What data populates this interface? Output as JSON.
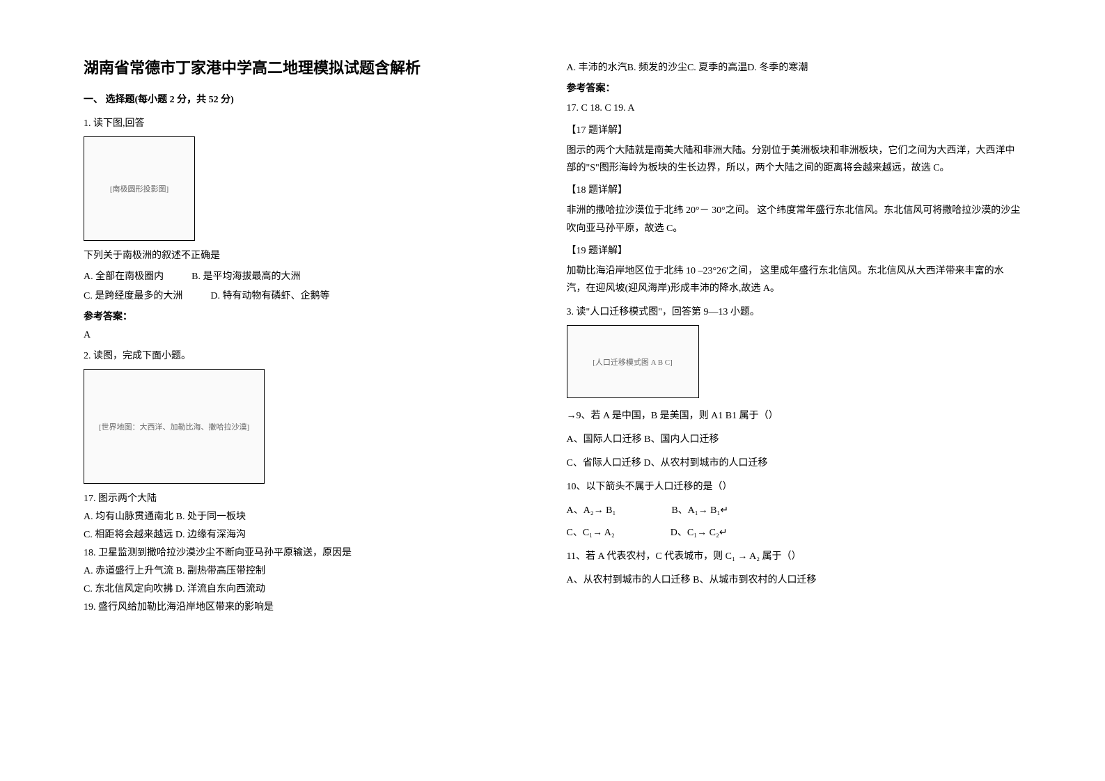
{
  "left": {
    "title": "湖南省常德市丁家港中学高二地理模拟试题含解析",
    "section1": "一、 选择题(每小题 2 分，共 52 分)",
    "q1": {
      "num": "1. 读下图,回答",
      "prompt": "下列关于南极洲的叙述不正确是",
      "optA": "A. 全部在南极圈内",
      "optB": "B. 是平均海拔最高的大洲",
      "optC": "C. 是跨经度最多的大洲",
      "optD": "D. 特有动物有磷虾、企鹅等",
      "answerLabel": "参考答案：",
      "answer": "A"
    },
    "q2": {
      "num": "2. 读图，完成下面小题。",
      "q17": "17.  图示两个大陆",
      "q17a": "A.  均有山脉贯通南北 B.  处于同一板块",
      "q17c": "C.  相距将会越来越远 D.  边缘有深海沟",
      "q18": "18.  卫星监测到撒哈拉沙漠沙尘不断向亚马孙平原输送，原因是",
      "q18a": "A.  赤道盛行上升气流 B.  副热带高压带控制",
      "q18c": "C.  东北信风定向吹拂 D.  洋流自东向西流动",
      "q19": "19.  盛行风给加勒比海沿岸地区带来的影响是"
    }
  },
  "right": {
    "q19opts": "A.  丰沛的水汽B.  频发的沙尘C.  夏季的高温D.  冬季的寒潮",
    "answerLabel": "参考答案：",
    "answers": "17.  C       18.  C         19.  A",
    "d17h": "【17 题详解】",
    "d17": "图示的两个大陆就是南美大陆和非洲大陆。分别位于美洲板块和非洲板块，它们之间为大西洋，大西洋中部的\"S\"图形海岭为板块的生长边界，所以，两个大陆之间的距离将会越来越远，故选 C。",
    "d18h": "【18 题详解】",
    "d18": "非洲的撒哈拉沙漠位于北纬 20°－ 30°之间。 这个纬度常年盛行东北信风。东北信风可将撒哈拉沙漠的沙尘吹向亚马孙平原，故选 C。",
    "d19h": "【19 题详解】",
    "d19": "加勒比海沿岸地区位于北纬 10 –23°26′之间， 这里成年盛行东北信风。东北信风从大西洋带来丰富的水汽，在迎风坡(迎风海岸)形成丰沛的降水,故选 A。",
    "q3": "3. 读\"人口迁移模式图\"，回答第 9—13 小题。",
    "q9": "→9、若 A 是中国，B 是美国，则 A1    B1 属于（）",
    "q9a": "A、国际人口迁移  B、国内人口迁移",
    "q9c": "C、省际人口迁移  D、从农村到城市的人口迁移",
    "q10": "10、以下箭头不属于人口迁移的是（）",
    "q10a": "A、A₂→  B₁",
    "q10b": "B、A₁→    B₁↵",
    "q10c": "C、C₁→  A₂",
    "q10d": "D、C₁→    C₂↵",
    "q11": "11、若 A 代表农村，C 代表城市，则 C₁ → A₂ 属于（）",
    "q11a": "A、从农村到城市的人口迁移    B、从城市到农村的人口迁移"
  },
  "images": {
    "antarctica": "[南极圆形投影图]",
    "worldmap": "[世界地图：大西洋、加勒比海、撒哈拉沙漠]",
    "migration": "[人口迁移模式图 A B C]"
  }
}
